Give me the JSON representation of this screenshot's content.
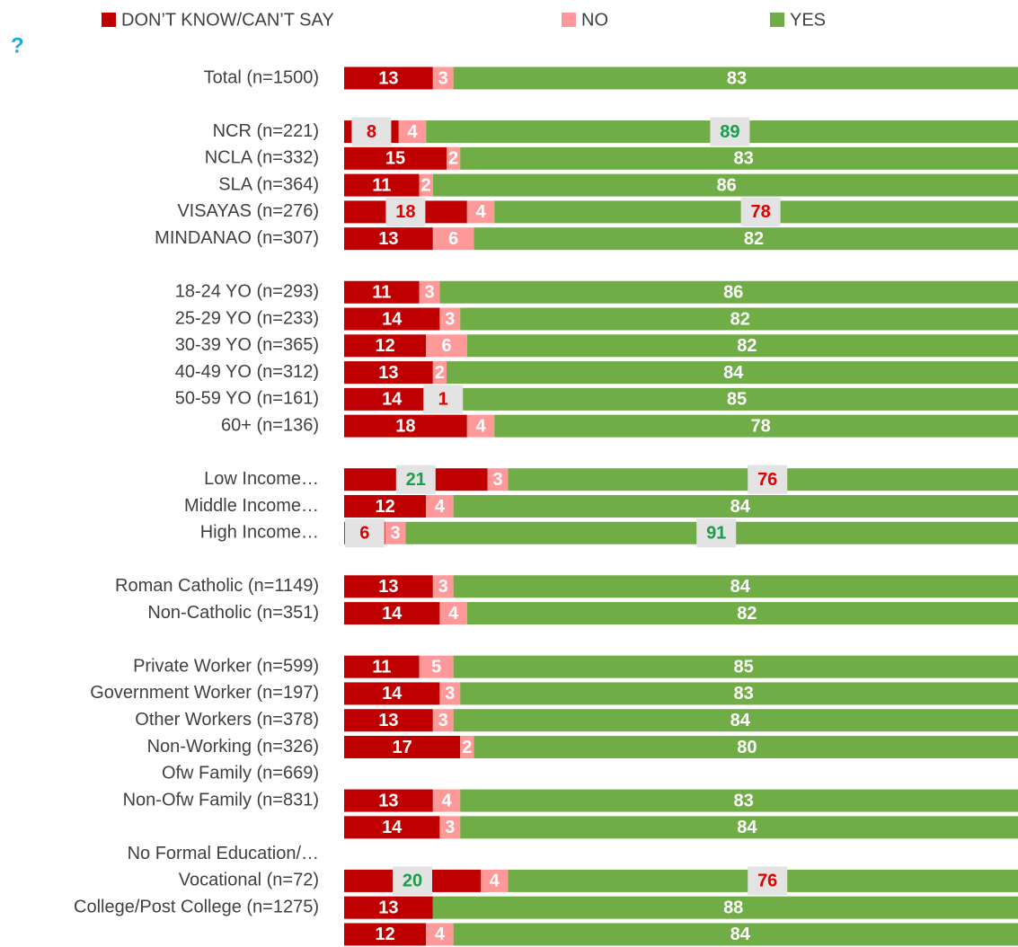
{
  "chart_data": {
    "type": "stacked_barh",
    "title": "?",
    "categories": [
      "Total (n=1500)",
      null,
      "NCR (n=221)",
      "NCLA (n=332)",
      "SLA (n=364)",
      "VISAYAS (n=276)",
      "MINDANAO (n=307)",
      null,
      "18-24 YO (n=293)",
      "25-29 YO (n=233)",
      "30-39 YO (n=365)",
      "40-49 YO (n=312)",
      "50-59 YO (n=161)",
      "60+ (n=136)",
      null,
      "Low Income…",
      "Middle Income…",
      "High Income…",
      null,
      "Roman Catholic (n=1149)",
      "Non-Catholic (n=351)",
      null,
      "Private Worker (n=599)",
      "Government Worker (n=197)",
      "Other Workers (n=378)",
      "Non-Working (n=326)",
      "Ofw Family (n=669)",
      "Non-Ofw Family (n=831)",
      null,
      "No Formal Education/…",
      "Vocational (n=72)",
      "College/Post College (n=1275)",
      null
    ],
    "series": [
      {
        "name": "DON’T KNOW/CAN’T SAY",
        "color": "#c00000",
        "values": [
          13,
          null,
          8,
          15,
          11,
          18,
          13,
          null,
          11,
          14,
          12,
          13,
          14,
          18,
          null,
          21,
          12,
          6,
          null,
          13,
          14,
          null,
          11,
          14,
          13,
          17,
          null,
          13,
          14,
          null,
          20,
          13,
          12
        ],
        "label_colors": [
          null,
          null,
          "#e00000",
          null,
          null,
          "#e00000",
          null,
          null,
          null,
          null,
          null,
          null,
          null,
          null,
          null,
          "#1a9e4a",
          null,
          "#e00000",
          null,
          null,
          null,
          null,
          null,
          null,
          null,
          null,
          null,
          null,
          null,
          null,
          "#1a9e4a",
          null,
          null
        ]
      },
      {
        "name": "NO",
        "color": "#ff9999",
        "values": [
          3,
          null,
          4,
          2,
          2,
          4,
          6,
          null,
          3,
          3,
          6,
          2,
          1,
          4,
          null,
          3,
          4,
          3,
          null,
          3,
          4,
          null,
          5,
          3,
          3,
          2,
          null,
          4,
          3,
          null,
          4,
          null,
          4
        ],
        "label_colors": [
          null,
          null,
          null,
          null,
          null,
          null,
          null,
          null,
          null,
          null,
          null,
          null,
          "#e00000",
          null,
          null,
          null,
          null,
          null,
          null,
          null,
          null,
          null,
          null,
          null,
          null,
          null,
          null,
          null,
          null,
          null,
          null,
          null,
          null
        ]
      },
      {
        "name": "YES",
        "color": "#70ad47",
        "values": [
          83,
          null,
          89,
          83,
          86,
          78,
          82,
          null,
          86,
          82,
          82,
          84,
          85,
          78,
          null,
          76,
          84,
          91,
          null,
          84,
          82,
          null,
          85,
          83,
          84,
          80,
          null,
          83,
          84,
          null,
          76,
          88,
          84
        ],
        "label_colors": [
          null,
          null,
          "#1a9e4a",
          null,
          null,
          "#e00000",
          null,
          null,
          null,
          null,
          null,
          null,
          null,
          null,
          null,
          "#e00000",
          null,
          "#1a9e4a",
          null,
          null,
          null,
          null,
          null,
          null,
          null,
          null,
          null,
          null,
          null,
          null,
          "#e00000",
          null,
          null
        ]
      }
    ],
    "xlim": [
      0,
      100
    ]
  }
}
